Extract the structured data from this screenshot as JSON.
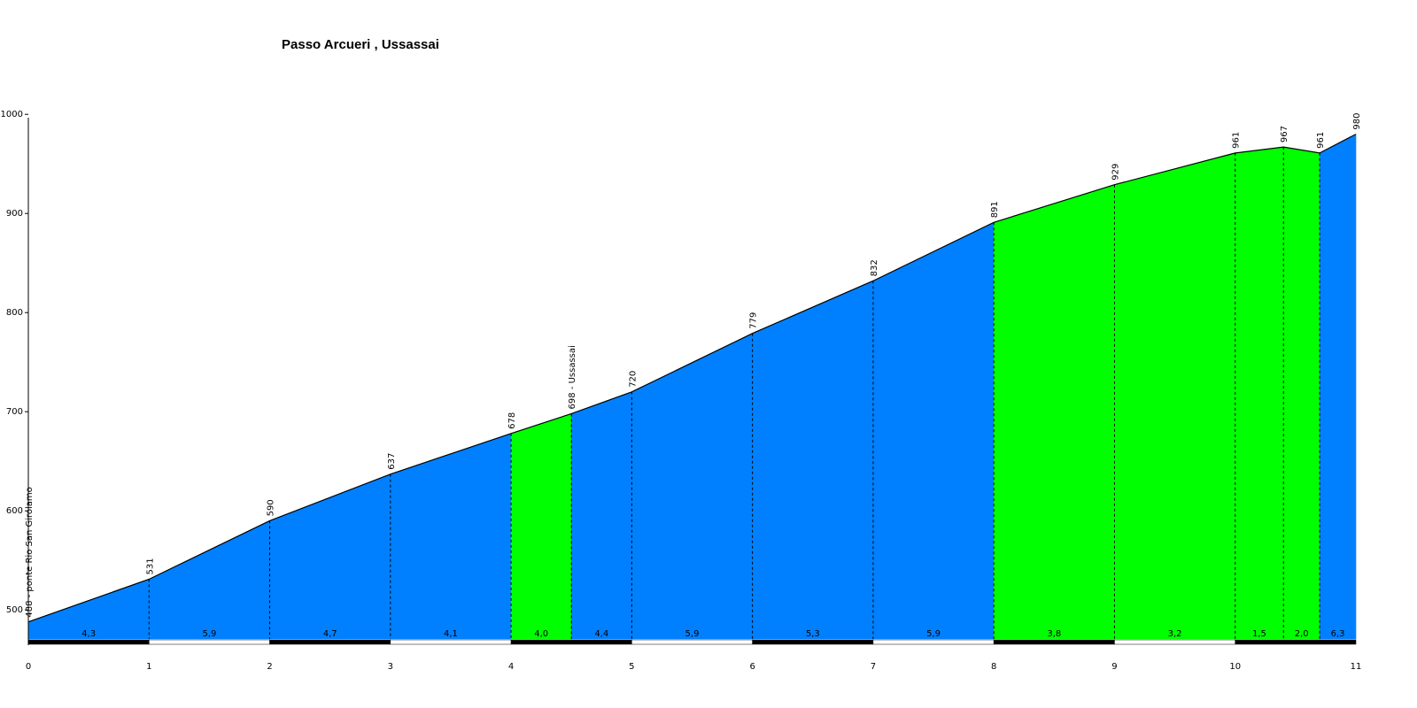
{
  "chart_data": {
    "type": "area",
    "title": "Passo Arcueri , Ussassai",
    "xlabel": "",
    "ylabel": "",
    "xlim": [
      0,
      11
    ],
    "ylim": [
      460,
      1000
    ],
    "x_ticks": [
      "0",
      "1",
      "2",
      "3",
      "4",
      "5",
      "6",
      "7",
      "8",
      "9",
      "10",
      "11"
    ],
    "y_ticks": [
      "500",
      "600",
      "700",
      "800",
      "900",
      "1000"
    ],
    "grid": false,
    "legend": "none",
    "colors": {
      "climb": "#0080ff",
      "flat": "#00ff00",
      "outline": "#000000"
    },
    "points": [
      {
        "x": 0,
        "y": 488,
        "label": "488 - ponte Rio San Girolamo"
      },
      {
        "x": 1,
        "y": 531,
        "label": "531"
      },
      {
        "x": 2,
        "y": 590,
        "label": "590"
      },
      {
        "x": 3,
        "y": 637,
        "label": "637"
      },
      {
        "x": 4,
        "y": 678,
        "label": "678"
      },
      {
        "x": 4.5,
        "y": 698,
        "label": "698 - Ussassai"
      },
      {
        "x": 5,
        "y": 720,
        "label": "720"
      },
      {
        "x": 6,
        "y": 779,
        "label": "779"
      },
      {
        "x": 7,
        "y": 832,
        "label": "832"
      },
      {
        "x": 8,
        "y": 891,
        "label": "891"
      },
      {
        "x": 9,
        "y": 929,
        "label": "929"
      },
      {
        "x": 10,
        "y": 961,
        "label": "961"
      },
      {
        "x": 10.4,
        "y": 967,
        "label": "967"
      },
      {
        "x": 10.7,
        "y": 961,
        "label": "961"
      },
      {
        "x": 11,
        "y": 980,
        "label": "980"
      }
    ],
    "segments": [
      {
        "from": 0,
        "to": 1,
        "gradient": "4,3",
        "fill": "climb"
      },
      {
        "from": 1,
        "to": 2,
        "gradient": "5,9",
        "fill": "climb"
      },
      {
        "from": 2,
        "to": 3,
        "gradient": "4,7",
        "fill": "climb"
      },
      {
        "from": 3,
        "to": 4,
        "gradient": "4,1",
        "fill": "climb"
      },
      {
        "from": 4,
        "to": 4.5,
        "gradient": "4,0",
        "fill": "flat"
      },
      {
        "from": 4.5,
        "to": 5,
        "gradient": "4,4",
        "fill": "climb"
      },
      {
        "from": 5,
        "to": 6,
        "gradient": "5,9",
        "fill": "climb"
      },
      {
        "from": 6,
        "to": 7,
        "gradient": "5,3",
        "fill": "climb"
      },
      {
        "from": 7,
        "to": 8,
        "gradient": "5,9",
        "fill": "climb"
      },
      {
        "from": 8,
        "to": 9,
        "gradient": "3,8",
        "fill": "flat"
      },
      {
        "from": 9,
        "to": 10,
        "gradient": "3,2",
        "fill": "flat"
      },
      {
        "from": 10,
        "to": 10.4,
        "gradient": "1,5",
        "fill": "flat"
      },
      {
        "from": 10.4,
        "to": 10.7,
        "gradient": "2,0",
        "fill": "flat"
      },
      {
        "from": 10.7,
        "to": 11,
        "gradient": "6,3",
        "fill": "climb"
      }
    ],
    "km_bar": [
      {
        "from": 0,
        "to": 1,
        "color": "#000000"
      },
      {
        "from": 1,
        "to": 2,
        "color": "#ffffff"
      },
      {
        "from": 2,
        "to": 3,
        "color": "#000000"
      },
      {
        "from": 3,
        "to": 4,
        "color": "#ffffff"
      },
      {
        "from": 4,
        "to": 5,
        "color": "#000000"
      },
      {
        "from": 5,
        "to": 6,
        "color": "#ffffff"
      },
      {
        "from": 6,
        "to": 7,
        "color": "#000000"
      },
      {
        "from": 7,
        "to": 8,
        "color": "#ffffff"
      },
      {
        "from": 8,
        "to": 9,
        "color": "#000000"
      },
      {
        "from": 9,
        "to": 10,
        "color": "#ffffff"
      },
      {
        "from": 10,
        "to": 11,
        "color": "#000000"
      }
    ]
  }
}
